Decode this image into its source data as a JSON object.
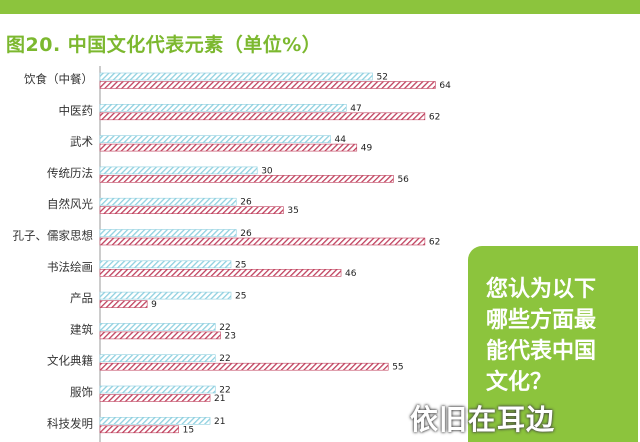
{
  "chart_data": {
    "type": "bar",
    "orientation": "horizontal",
    "title": "图20. 中国文化代表元素（单位%）",
    "categories": [
      "饮食（中餐）",
      "中医药",
      "武术",
      "传统历法",
      "自然风光",
      "孔子、儒家思想",
      "书法绘画",
      "产品",
      "建筑",
      "文化典籍",
      "服饰",
      "科技发明"
    ],
    "series": [
      {
        "values": [
          52,
          47,
          44,
          30,
          26,
          26,
          25,
          25,
          22,
          22,
          22,
          21
        ]
      },
      {
        "values": [
          64,
          62,
          49,
          56,
          35,
          62,
          46,
          9,
          23,
          55,
          21,
          15
        ]
      }
    ],
    "xlim": [
      0,
      66
    ],
    "grid": false
  },
  "callout": {
    "lines": [
      "您认为以下",
      "哪些方面最",
      "能代表中国",
      "文化？"
    ]
  },
  "watermark": "依旧在耳边",
  "colors": {
    "series1": "#8fd0e0",
    "series2": "#c0415e",
    "accent": "#8cc43d"
  }
}
